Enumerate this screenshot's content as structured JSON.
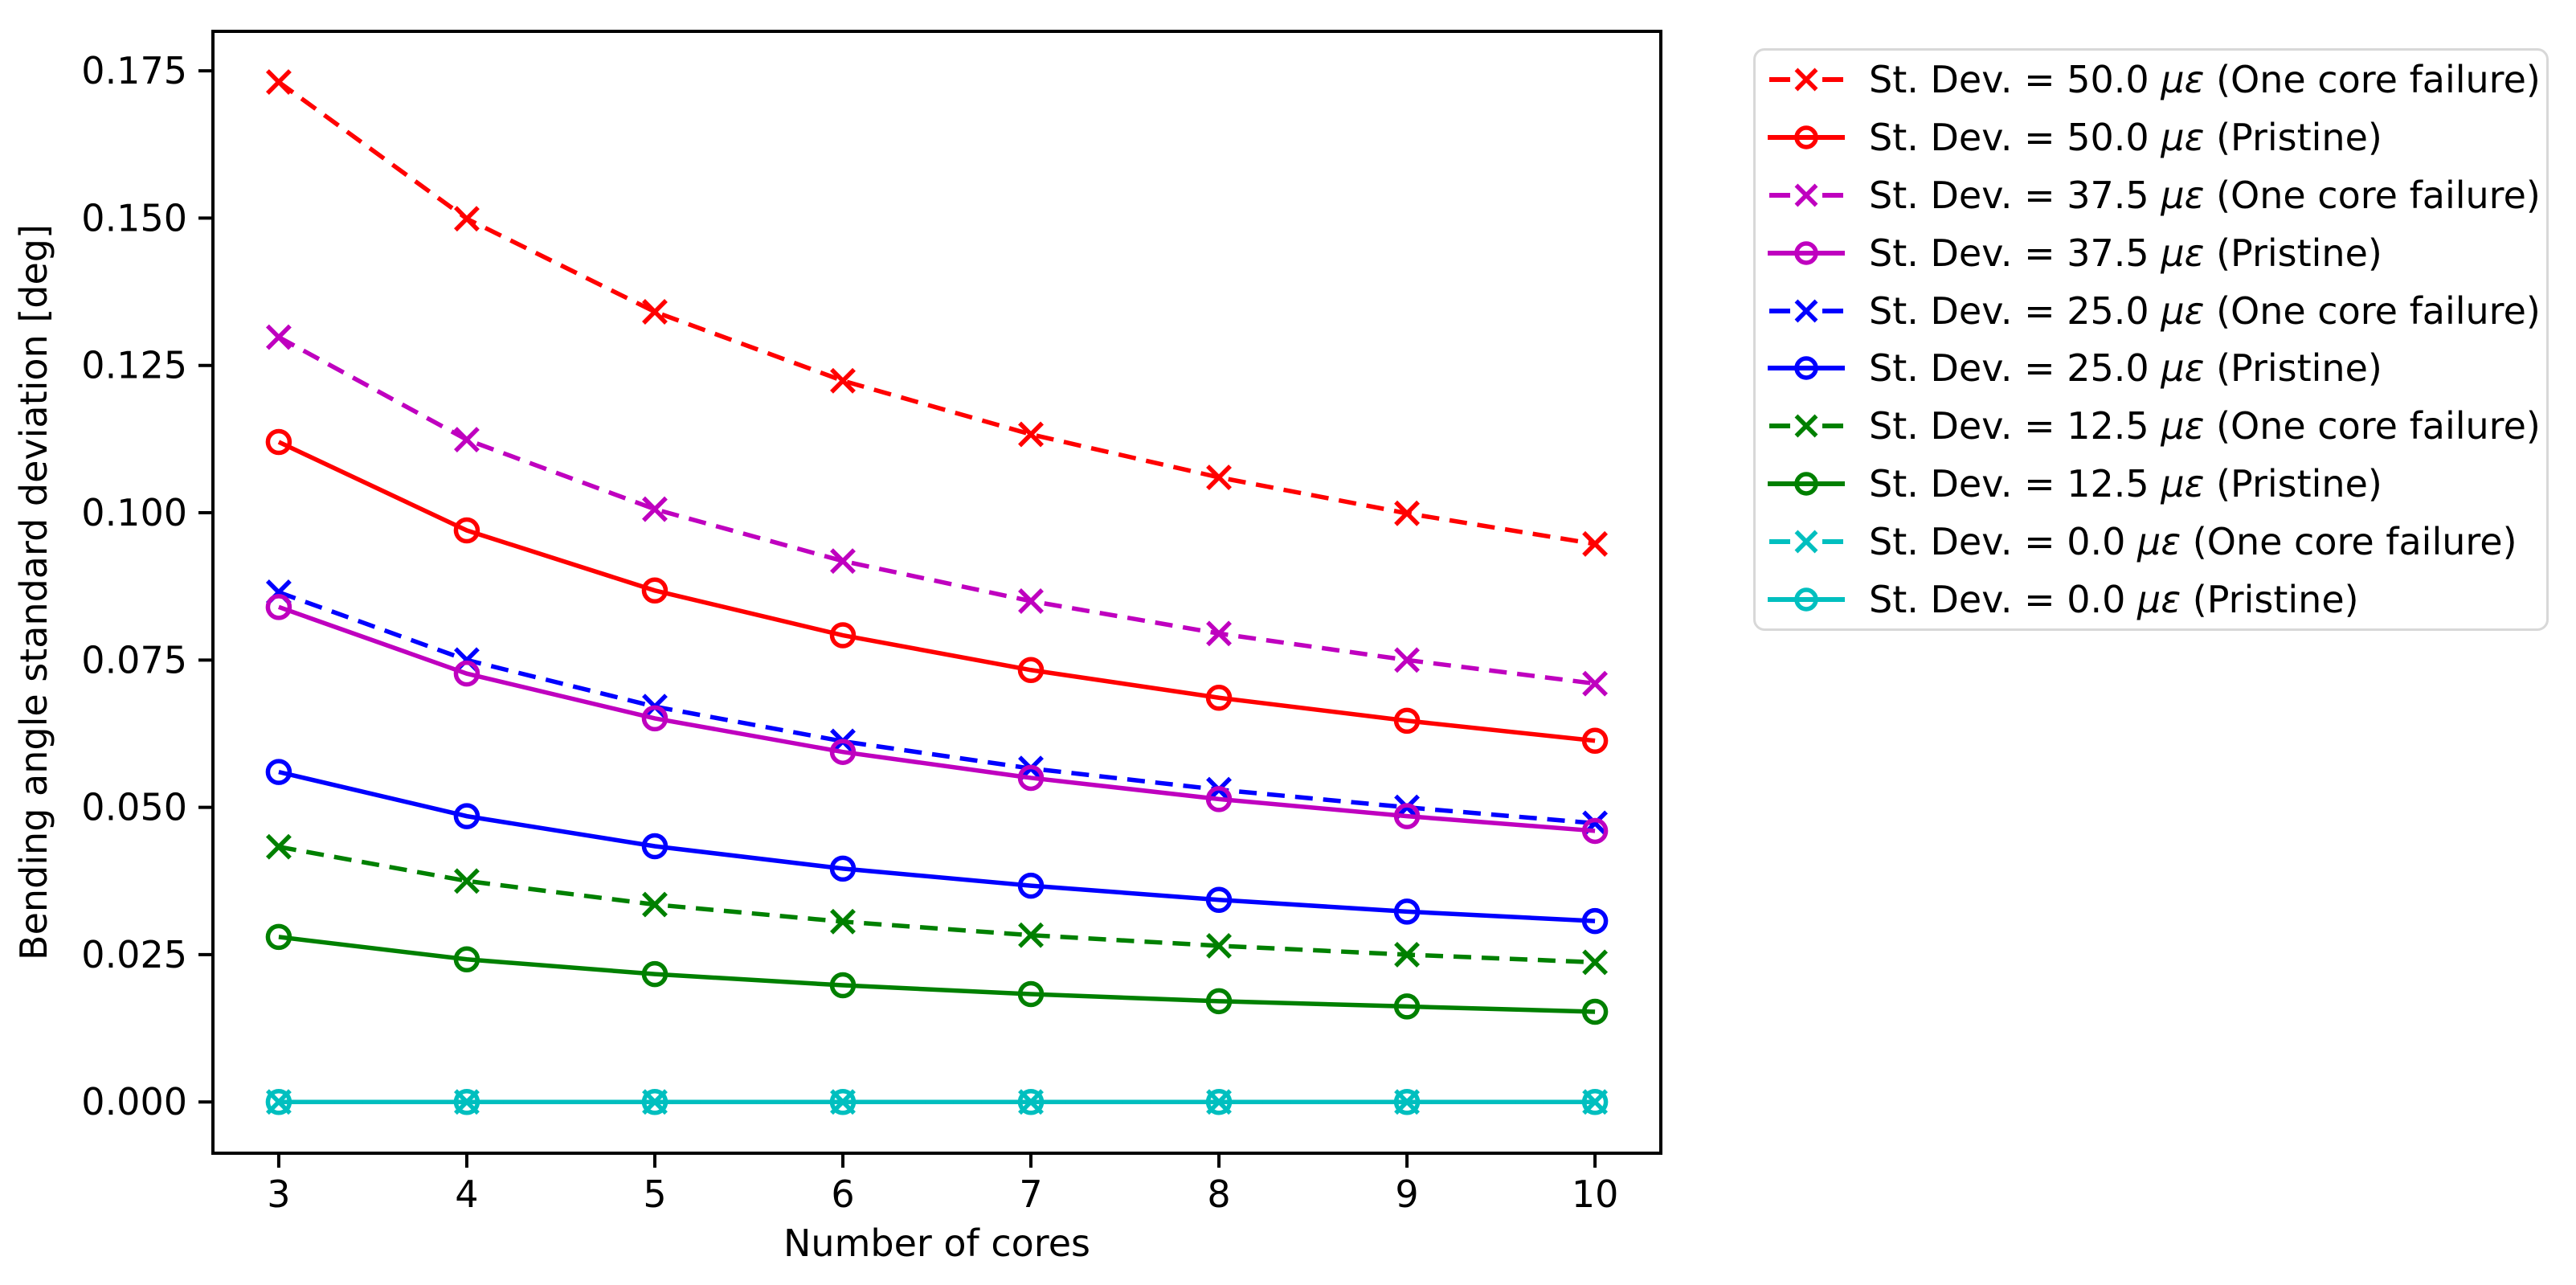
{
  "chart_data": {
    "type": "line",
    "title": "",
    "xlabel": "Number of cores",
    "ylabel": "Bending angle standard deviation [deg]",
    "x": [
      3,
      4,
      5,
      6,
      7,
      8,
      9,
      10
    ],
    "xlim": [
      2.65,
      10.35
    ],
    "ylim": [
      -0.0087,
      0.1817
    ],
    "xticks": [
      3,
      4,
      5,
      6,
      7,
      8,
      9,
      10
    ],
    "xtick_labels": [
      "3",
      "4",
      "5",
      "6",
      "7",
      "8",
      "9",
      "10"
    ],
    "yticks": [
      0.0,
      0.025,
      0.05,
      0.075,
      0.1,
      0.125,
      0.15,
      0.175
    ],
    "ytick_labels": [
      "0.000",
      "0.025",
      "0.050",
      "0.075",
      "0.100",
      "0.125",
      "0.150",
      "0.175"
    ],
    "grid": false,
    "legend": {
      "position": "outside right top",
      "border_color": "#d8d8d8"
    },
    "series": [
      {
        "label": "St. Dev. = 50.0 με (One core failure)",
        "color": "#ff0000",
        "linestyle": "dashed",
        "marker": "x",
        "values": [
          0.1731,
          0.1499,
          0.1341,
          0.1224,
          0.1133,
          0.106,
          0.0999,
          0.0947
        ]
      },
      {
        "label": "St. Dev. = 50.0 με (Pristine)",
        "color": "#ff0000",
        "linestyle": "solid",
        "marker": "circle",
        "values": [
          0.112,
          0.097,
          0.0868,
          0.0792,
          0.0733,
          0.0686,
          0.0647,
          0.0613
        ]
      },
      {
        "label": "St. Dev. = 37.5 με (One core failure)",
        "color": "#bf00bf",
        "linestyle": "dashed",
        "marker": "x",
        "values": [
          0.1298,
          0.1124,
          0.1006,
          0.0918,
          0.085,
          0.0795,
          0.075,
          0.071
        ]
      },
      {
        "label": "St. Dev. = 37.5 με (Pristine)",
        "color": "#bf00bf",
        "linestyle": "solid",
        "marker": "circle",
        "values": [
          0.084,
          0.0727,
          0.0651,
          0.0594,
          0.055,
          0.0514,
          0.0485,
          0.046
        ]
      },
      {
        "label": "St. Dev. = 25.0 με (One core failure)",
        "color": "#0000ff",
        "linestyle": "dashed",
        "marker": "x",
        "values": [
          0.0865,
          0.075,
          0.0671,
          0.0612,
          0.0566,
          0.053,
          0.05,
          0.0473
        ]
      },
      {
        "label": "St. Dev. = 25.0 με (Pristine)",
        "color": "#0000ff",
        "linestyle": "solid",
        "marker": "circle",
        "values": [
          0.056,
          0.0485,
          0.0434,
          0.0396,
          0.0367,
          0.0343,
          0.0323,
          0.0307
        ]
      },
      {
        "label": "St. Dev. = 12.5 με (One core failure)",
        "color": "#008000",
        "linestyle": "dashed",
        "marker": "x",
        "values": [
          0.0433,
          0.0375,
          0.0335,
          0.0306,
          0.0283,
          0.0265,
          0.025,
          0.0237
        ]
      },
      {
        "label": "St. Dev. = 12.5 με (Pristine)",
        "color": "#008000",
        "linestyle": "solid",
        "marker": "circle",
        "values": [
          0.028,
          0.0242,
          0.0217,
          0.0198,
          0.0183,
          0.0171,
          0.0162,
          0.0153
        ]
      },
      {
        "label": "St. Dev. = 0.0 με (One core failure)",
        "color": "#00bfbf",
        "linestyle": "dashed",
        "marker": "x",
        "values": [
          0.0,
          0.0,
          0.0,
          0.0,
          0.0,
          0.0,
          0.0,
          0.0
        ]
      },
      {
        "label": "St. Dev. = 0.0 με (Pristine)",
        "color": "#00bfbf",
        "linestyle": "solid",
        "marker": "circle",
        "values": [
          0.0,
          0.0,
          0.0,
          0.0,
          0.0,
          0.0,
          0.0,
          0.0
        ]
      }
    ]
  }
}
